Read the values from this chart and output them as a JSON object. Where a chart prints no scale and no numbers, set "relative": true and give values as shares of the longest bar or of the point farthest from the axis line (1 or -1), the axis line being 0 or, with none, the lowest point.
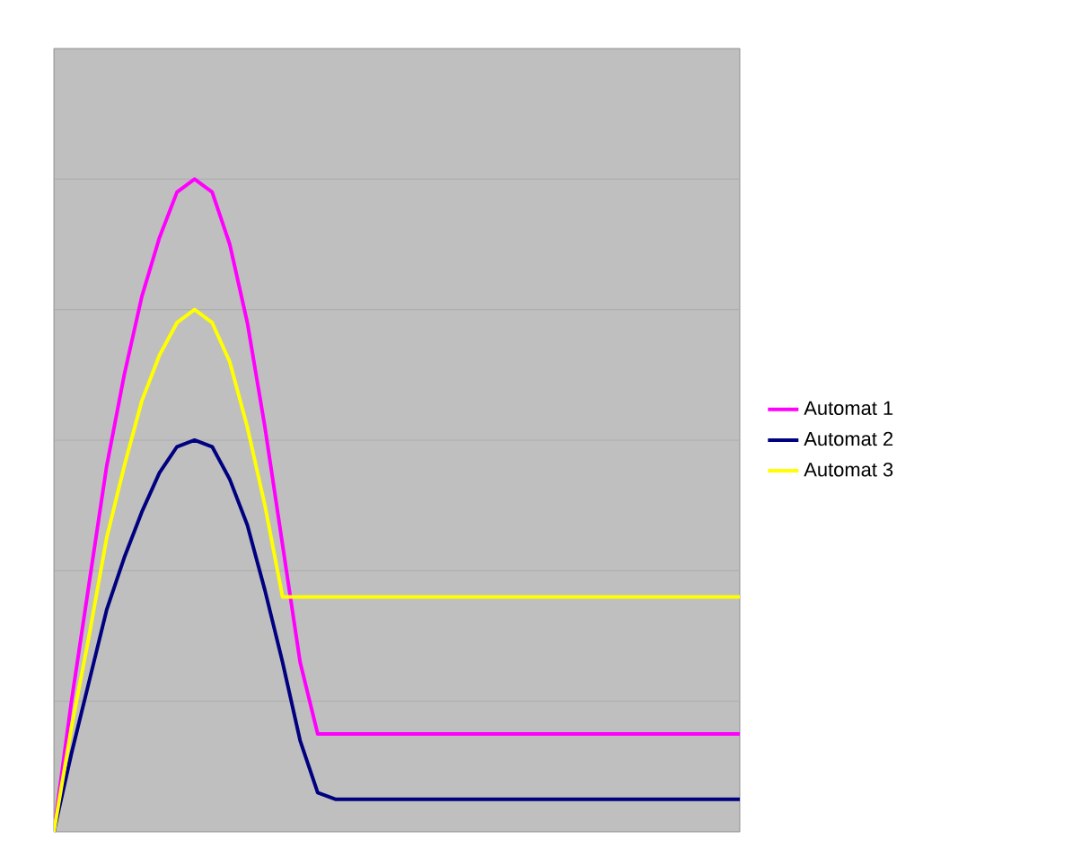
{
  "chart_data": {
    "type": "line",
    "relative": true,
    "grid": "y",
    "legend": "right",
    "marker": "none",
    "line_style": "solid",
    "categories": [
      null,
      null,
      null,
      null,
      null,
      null,
      null,
      null,
      null,
      null,
      null,
      null,
      null,
      null,
      null,
      null,
      null,
      null,
      null,
      null,
      null,
      null,
      null,
      null,
      null,
      null,
      null,
      null,
      null,
      null,
      null,
      null,
      null,
      null,
      null,
      null,
      null,
      null,
      null,
      null
    ],
    "series": [
      {
        "name": "Automat 1",
        "color": "#ff00ff",
        "values": [
          0,
          0.2,
          0.38,
          0.56,
          0.7,
          0.82,
          0.91,
          0.98,
          1,
          0.98,
          0.9,
          0.78,
          0.62,
          0.44,
          0.26,
          0.15,
          0.15,
          0.15,
          0.15,
          0.15,
          0.15,
          0.15,
          0.15,
          0.15,
          0.15,
          0.15,
          0.15,
          0.15,
          0.15,
          0.15,
          0.15,
          0.15,
          0.15,
          0.15,
          0.15,
          0.15,
          0.15,
          0.15,
          0.15,
          0.15
        ]
      },
      {
        "name": "Automat 2",
        "color": "#000080",
        "values": [
          0,
          0.12,
          0.23,
          0.34,
          0.42,
          0.49,
          0.55,
          0.59,
          0.6,
          0.59,
          0.54,
          0.47,
          0.37,
          0.26,
          0.14,
          0.06,
          0.05,
          0.05,
          0.05,
          0.05,
          0.05,
          0.05,
          0.05,
          0.05,
          0.05,
          0.05,
          0.05,
          0.05,
          0.05,
          0.05,
          0.05,
          0.05,
          0.05,
          0.05,
          0.05,
          0.05,
          0.05,
          0.05,
          0.05,
          0.05
        ]
      },
      {
        "name": "Automat 3",
        "color": "#ffff00",
        "values": [
          0,
          0.16,
          0.3,
          0.45,
          0.56,
          0.66,
          0.73,
          0.78,
          0.8,
          0.78,
          0.72,
          0.62,
          0.5,
          0.36,
          0.36,
          0.36,
          0.36,
          0.36,
          0.36,
          0.36,
          0.36,
          0.36,
          0.36,
          0.36,
          0.36,
          0.36,
          0.36,
          0.36,
          0.36,
          0.36,
          0.36,
          0.36,
          0.36,
          0.36,
          0.36,
          0.36,
          0.36,
          0.36,
          0.36,
          0.36
        ]
      }
    ]
  }
}
